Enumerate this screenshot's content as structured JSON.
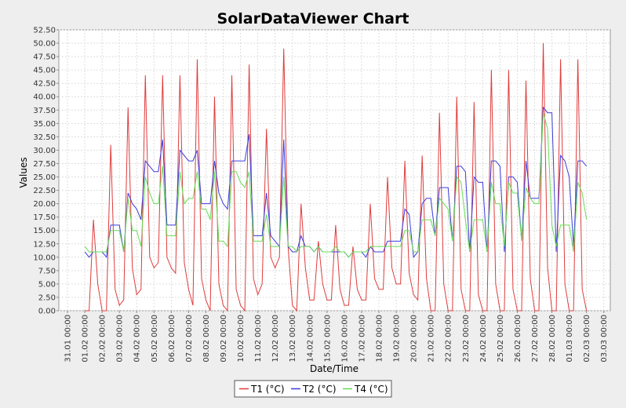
{
  "chart_data": {
    "type": "line",
    "title": "SolarDataViewer Chart",
    "x_label": "Date/Time",
    "y_label": "Values",
    "xlim": [
      "30.01 12:00",
      "03.03 09:00"
    ],
    "xticks": [
      "31.01 00:00",
      "01.02 00:00",
      "02.02 00:00",
      "03.02 00:00",
      "04.02 00:00",
      "05.02 00:00",
      "06.02 00:00",
      "07.02 00:00",
      "08.02 00:00",
      "09.02 00:00",
      "10.02 00:00",
      "11.02 00:00",
      "12.02 00:00",
      "13.02 00:00",
      "14.02 00:00",
      "15.02 00:00",
      "16.02 00:00",
      "17.02 00:00",
      "18.02 00:00",
      "19.02 00:00",
      "20.02 00:00",
      "21.02 00:00",
      "22.02 00:00",
      "23.02 00:00",
      "24.02 00:00",
      "25.02 00:00",
      "26.02 00:00",
      "27.02 00:00",
      "28.02 00:00",
      "01.03 00:00",
      "02.03 00:00",
      "03.03 00:00"
    ],
    "ylim": [
      0,
      52.5
    ],
    "yticks": [
      {
        "value": 0,
        "label": "0.00"
      },
      {
        "value": 2.5,
        "label": "2.50"
      },
      {
        "value": 5,
        "label": "5.00"
      },
      {
        "value": 7.5,
        "label": "7.50"
      },
      {
        "value": 10,
        "label": "10.00"
      },
      {
        "value": 12.5,
        "label": "12.50"
      },
      {
        "value": 15,
        "label": "15.00"
      },
      {
        "value": 17.5,
        "label": "17.50"
      },
      {
        "value": 20,
        "label": "20.00"
      },
      {
        "value": 22.5,
        "label": "22.50"
      },
      {
        "value": 25,
        "label": "25.00"
      },
      {
        "value": 27.5,
        "label": "27.50"
      },
      {
        "value": 30,
        "label": "30.00"
      },
      {
        "value": 32.5,
        "label": "32.50"
      },
      {
        "value": 35,
        "label": "35.00"
      },
      {
        "value": 37.5,
        "label": "37.50"
      },
      {
        "value": 40,
        "label": "40.00"
      },
      {
        "value": 42.5,
        "label": "42.50"
      },
      {
        "value": 45,
        "label": "45.00"
      },
      {
        "value": 47.5,
        "label": "47.50"
      },
      {
        "value": 50,
        "label": "50.00"
      },
      {
        "value": 52.5,
        "label": "52.50"
      }
    ],
    "grid": true,
    "legend": "bottom",
    "x": [
      "01.02 00:00",
      "01.02 06:00",
      "01.02 12:00",
      "01.02 18:00",
      "02.02 00:00",
      "02.02 06:00",
      "02.02 12:00",
      "02.02 18:00",
      "03.02 00:00",
      "03.02 06:00",
      "03.02 12:00",
      "03.02 18:00",
      "04.02 00:00",
      "04.02 06:00",
      "04.02 12:00",
      "04.02 18:00",
      "05.02 00:00",
      "05.02 06:00",
      "05.02 12:00",
      "05.02 18:00",
      "06.02 00:00",
      "06.02 06:00",
      "06.02 12:00",
      "06.02 18:00",
      "07.02 00:00",
      "07.02 06:00",
      "07.02 12:00",
      "07.02 18:00",
      "08.02 00:00",
      "08.02 06:00",
      "08.02 12:00",
      "08.02 18:00",
      "09.02 00:00",
      "09.02 06:00",
      "09.02 12:00",
      "09.02 18:00",
      "10.02 00:00",
      "10.02 06:00",
      "10.02 12:00",
      "10.02 18:00",
      "11.02 00:00",
      "11.02 06:00",
      "11.02 12:00",
      "11.02 18:00",
      "12.02 00:00",
      "12.02 06:00",
      "12.02 12:00",
      "12.02 18:00",
      "13.02 00:00",
      "13.02 06:00",
      "13.02 12:00",
      "13.02 18:00",
      "14.02 00:00",
      "14.02 06:00",
      "14.02 12:00",
      "14.02 18:00",
      "15.02 00:00",
      "15.02 06:00",
      "15.02 12:00",
      "15.02 18:00",
      "16.02 00:00",
      "16.02 06:00",
      "16.02 12:00",
      "16.02 18:00",
      "17.02 00:00",
      "17.02 06:00",
      "17.02 12:00",
      "17.02 18:00",
      "18.02 00:00",
      "18.02 06:00",
      "18.02 12:00",
      "18.02 18:00",
      "19.02 00:00",
      "19.02 06:00",
      "19.02 12:00",
      "19.02 18:00",
      "20.02 00:00",
      "20.02 06:00",
      "20.02 12:00",
      "20.02 18:00",
      "21.02 00:00",
      "21.02 06:00",
      "21.02 12:00",
      "21.02 18:00",
      "22.02 00:00",
      "22.02 06:00",
      "22.02 12:00",
      "22.02 18:00",
      "23.02 00:00",
      "23.02 06:00",
      "23.02 12:00",
      "23.02 18:00",
      "24.02 00:00",
      "24.02 06:00",
      "24.02 12:00",
      "24.02 18:00",
      "25.02 00:00",
      "25.02 06:00",
      "25.02 12:00",
      "25.02 18:00",
      "26.02 00:00",
      "26.02 06:00",
      "26.02 12:00",
      "26.02 18:00",
      "27.02 00:00",
      "27.02 06:00",
      "27.02 12:00",
      "27.02 18:00",
      "28.02 00:00",
      "28.02 06:00",
      "28.02 12:00",
      "28.02 18:00",
      "01.03 00:00",
      "01.03 06:00",
      "01.03 12:00",
      "01.03 18:00",
      "02.03 00:00"
    ],
    "series": [
      {
        "name": "T1 (°C)",
        "color": "#e03c3c",
        "values": [
          0,
          0,
          17,
          5,
          0,
          0,
          31,
          4,
          1,
          2,
          38,
          8,
          3,
          4,
          44,
          10,
          8,
          9,
          44,
          10,
          8,
          7,
          44,
          9,
          4,
          1,
          47,
          6,
          2,
          0,
          40,
          5,
          1,
          0,
          44,
          4,
          1,
          0,
          46,
          6,
          3,
          5,
          34,
          10,
          8,
          10,
          49,
          12,
          1,
          0,
          20,
          8,
          2,
          2,
          13,
          5,
          2,
          2,
          16,
          4,
          1,
          1,
          12,
          4,
          2,
          2,
          20,
          6,
          4,
          4,
          25,
          8,
          5,
          5,
          28,
          7,
          3,
          2,
          29,
          6,
          0,
          0,
          37,
          5,
          0,
          0,
          40,
          4,
          0,
          0,
          39,
          3,
          0,
          0,
          45,
          5,
          0,
          0,
          45,
          4,
          0,
          0,
          43,
          6,
          0,
          0,
          50,
          8,
          0,
          0,
          47,
          5,
          0,
          0,
          47,
          4,
          0
        ]
      },
      {
        "name": "T2 (°C)",
        "color": "#3c3cdc",
        "values": [
          11,
          10,
          11,
          11,
          11,
          10,
          16,
          16,
          16,
          11,
          22,
          20,
          19,
          17,
          28,
          27,
          26,
          26,
          32,
          16,
          16,
          16,
          30,
          29,
          28,
          28,
          30,
          20,
          20,
          20,
          28,
          22,
          20,
          19,
          28,
          28,
          28,
          28,
          33,
          14,
          14,
          14,
          22,
          14,
          13,
          12,
          32,
          12,
          11,
          11,
          14,
          12,
          12,
          11,
          12,
          11,
          11,
          11,
          11,
          11,
          11,
          10,
          11,
          11,
          11,
          10,
          12,
          11,
          11,
          11,
          13,
          13,
          13,
          13,
          19,
          18,
          10,
          11,
          20,
          21,
          21,
          14,
          23,
          23,
          23,
          13,
          27,
          27,
          26,
          11,
          25,
          24,
          24,
          11,
          28,
          28,
          27,
          11,
          25,
          25,
          24,
          13,
          28,
          21,
          21,
          21,
          38,
          37,
          37,
          11,
          29,
          28,
          25,
          12,
          28,
          28,
          27
        ]
      },
      {
        "name": "T4 (°C)",
        "color": "#66dd55",
        "values": [
          12,
          11,
          11,
          11,
          11,
          11,
          15,
          15,
          15,
          11,
          21,
          15,
          15,
          12,
          25,
          22,
          20,
          20,
          27,
          14,
          14,
          14,
          26,
          20,
          21,
          21,
          26,
          19,
          19,
          17,
          26,
          13,
          13,
          12,
          26,
          26,
          24,
          23,
          26,
          13,
          13,
          13,
          18,
          12,
          12,
          12,
          25,
          12,
          12,
          11,
          12,
          12,
          12,
          11,
          12,
          11,
          11,
          11,
          12,
          11,
          11,
          10,
          11,
          11,
          11,
          11,
          12,
          12,
          12,
          12,
          12,
          12,
          12,
          12,
          15,
          15,
          11,
          11,
          17,
          17,
          17,
          14,
          21,
          20,
          19,
          13,
          25,
          24,
          17,
          11,
          17,
          17,
          17,
          11,
          24,
          20,
          20,
          12,
          24,
          22,
          22,
          13,
          23,
          21,
          20,
          20,
          37,
          34,
          16,
          12,
          16,
          16,
          16,
          11,
          24,
          22,
          17
        ]
      }
    ]
  }
}
